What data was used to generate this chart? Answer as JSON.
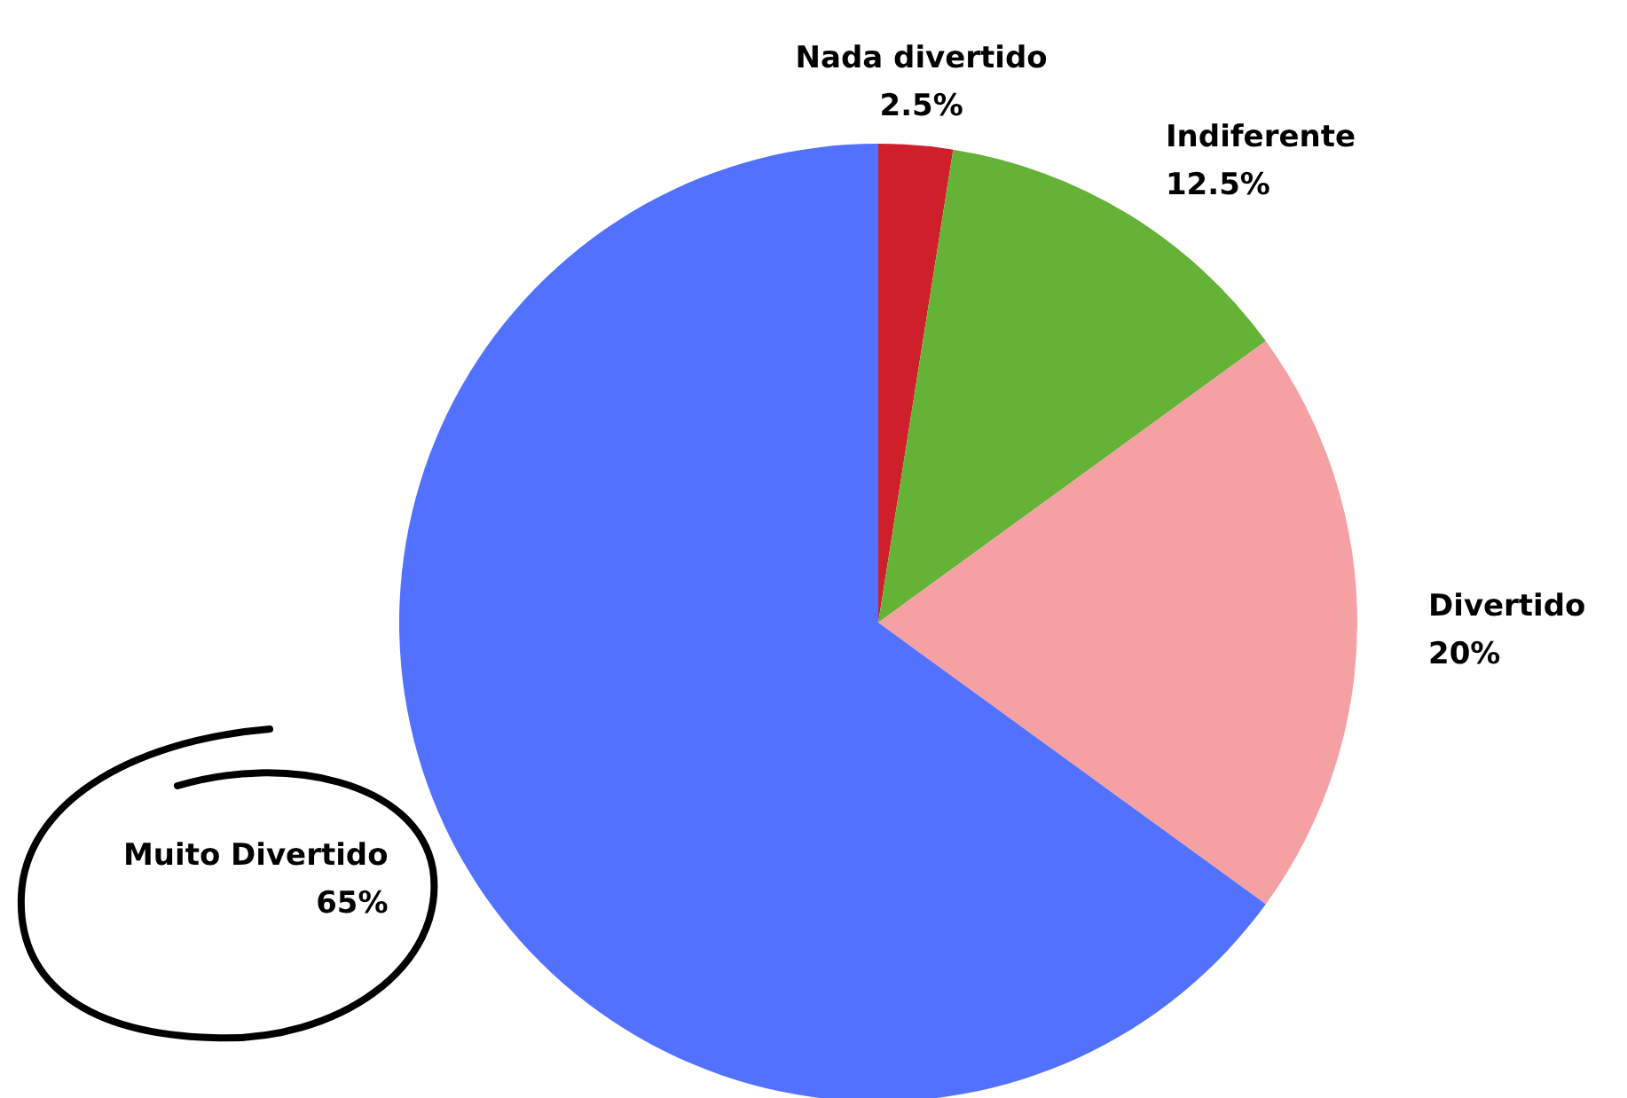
{
  "chart_data": {
    "type": "pie",
    "categories": [
      "Nada divertido",
      "Indiferente",
      "Divertido",
      "Muito Divertido"
    ],
    "values": [
      2.5,
      12.5,
      20,
      65
    ],
    "value_labels": [
      "2.5%",
      "12.5%",
      "20%",
      "65%"
    ],
    "colors": [
      "#cf1f2a",
      "#65b336",
      "#f5a0a2",
      "#5271ff"
    ]
  }
}
